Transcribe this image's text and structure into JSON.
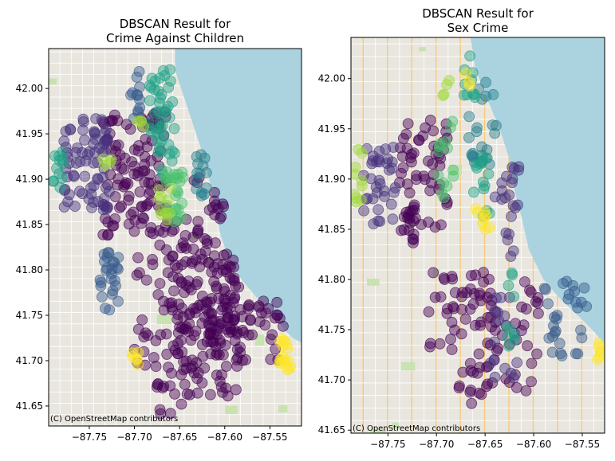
{
  "figure": {
    "colors": {
      "water": "#aad3df",
      "land": "#e9e6df",
      "park": "#c8e2b0",
      "road_major": "#f6c87a",
      "road_minor": "#ffffff",
      "viridis": [
        "#440154",
        "#46327e",
        "#365c8d",
        "#277f8e",
        "#1fa187",
        "#4ac16d",
        "#a0da39",
        "#fde725"
      ]
    }
  },
  "chart_data": [
    {
      "type": "scatter",
      "title_lines": [
        "DBSCAN Result for",
        "Crime Against Children"
      ],
      "attribution": "(C) OpenStreetMap contributors",
      "xlim": [
        -87.795,
        -87.515
      ],
      "ylim": [
        41.628,
        42.044
      ],
      "xticks": [
        -87.75,
        -87.7,
        -87.65,
        -87.6,
        -87.55
      ],
      "xtick_labels": [
        "−87.75",
        "−87.70",
        "−87.65",
        "−87.60",
        "−87.55"
      ],
      "yticks": [
        41.65,
        41.7,
        41.75,
        41.8,
        41.85,
        41.9,
        41.95,
        42.0
      ],
      "ytick_labels": [
        "41.65",
        "41.70",
        "41.75",
        "41.80",
        "41.85",
        "41.90",
        "41.95",
        "42.00"
      ],
      "colormap": "viridis",
      "basemap": "OpenStreetMap",
      "lake_outline": [
        [
          -87.655,
          42.044
        ],
        [
          -87.655,
          42.02
        ],
        [
          -87.645,
          41.99
        ],
        [
          -87.635,
          41.96
        ],
        [
          -87.625,
          41.93
        ],
        [
          -87.617,
          41.9
        ],
        [
          -87.612,
          41.87
        ],
        [
          -87.605,
          41.84
        ],
        [
          -87.595,
          41.81
        ],
        [
          -87.582,
          41.79
        ],
        [
          -87.565,
          41.77
        ],
        [
          -87.545,
          41.75
        ],
        [
          -87.535,
          41.735
        ],
        [
          -87.525,
          41.725
        ],
        [
          -87.515,
          41.72
        ],
        [
          -87.515,
          42.044
        ]
      ],
      "clusters": [
        {
          "label": 0,
          "color": 0.0,
          "regions": [
            [
              -87.735,
              -87.665,
              41.838,
              41.975
            ],
            [
              -87.7,
              -87.64,
              41.69,
              41.86
            ],
            [
              -87.655,
              -87.58,
              41.73,
              41.82
            ],
            [
              -87.64,
              -87.585,
              41.66,
              41.77
            ],
            [
              -87.62,
              -87.535,
              41.7,
              41.77
            ],
            [
              -87.635,
              -87.6,
              41.8,
              41.905
            ],
            [
              -87.675,
              -87.635,
              41.64,
              41.7
            ]
          ],
          "n_per_region": [
            110,
            70,
            75,
            55,
            55,
            30,
            18
          ]
        },
        {
          "label": 1,
          "color": 0.15,
          "regions": [
            [
              -87.778,
              -87.727,
              41.865,
              41.97
            ]
          ],
          "n_per_region": [
            70
          ]
        },
        {
          "label": 2,
          "color": 0.28,
          "regions": [
            [
              -87.738,
              -87.717,
              41.755,
              41.82
            ]
          ],
          "n_per_region": [
            26
          ]
        },
        {
          "label": 3,
          "color": 0.4,
          "regions": [
            [
              -87.632,
              -87.618,
              41.88,
              41.93
            ]
          ],
          "n_per_region": [
            14
          ]
        },
        {
          "label": 4,
          "color": 0.33,
          "regions": [
            [
              -87.707,
              -87.694,
              41.965,
              42.02
            ]
          ],
          "n_per_region": [
            12
          ]
        },
        {
          "label": 5,
          "color": 0.55,
          "regions": [
            [
              -87.685,
              -87.655,
              41.905,
              42.022
            ],
            [
              -87.79,
              -87.778,
              41.89,
              41.95
            ]
          ],
          "n_per_region": [
            45,
            12
          ]
        },
        {
          "label": 6,
          "color": 0.7,
          "regions": [
            [
              -87.667,
              -87.645,
              41.85,
              41.91
            ]
          ],
          "n_per_region": [
            25
          ]
        },
        {
          "label": 7,
          "color": 0.88,
          "regions": [
            [
              -87.697,
              -87.685,
              41.958,
              41.972
            ],
            [
              -87.673,
              -87.66,
              41.845,
              41.89
            ],
            [
              -87.735,
              -87.725,
              41.91,
              41.93
            ]
          ],
          "n_per_region": [
            4,
            10,
            4
          ]
        },
        {
          "label": 8,
          "color": 1.0,
          "regions": [
            [
              -87.54,
              -87.527,
              41.69,
              41.725
            ],
            [
              -87.703,
              -87.694,
              41.69,
              41.71
            ]
          ],
          "n_per_region": [
            16,
            6
          ]
        }
      ]
    },
    {
      "type": "scatter",
      "title_lines": [
        "DBSCAN Result for",
        "Sex Crime"
      ],
      "attribution": "(C) OpenStreetMap contributors",
      "xlim": [
        -87.788,
        -87.527
      ],
      "ylim": [
        41.647,
        42.041
      ],
      "xticks": [
        -87.75,
        -87.7,
        -87.65,
        -87.6,
        -87.55
      ],
      "xtick_labels": [
        "−87.75",
        "−87.70",
        "−87.65",
        "−87.60",
        "−87.55"
      ],
      "yticks": [
        41.65,
        41.7,
        41.75,
        41.8,
        41.85,
        41.9,
        41.95,
        42.0
      ],
      "ytick_labels": [
        "41.65",
        "41.70",
        "41.75",
        "41.80",
        "41.85",
        "41.90",
        "41.95",
        "42.00"
      ],
      "colormap": "viridis",
      "basemap": "OpenStreetMap",
      "lake_outline": [
        [
          -87.665,
          42.041
        ],
        [
          -87.66,
          42.01
        ],
        [
          -87.648,
          41.98
        ],
        [
          -87.635,
          41.95
        ],
        [
          -87.625,
          41.92
        ],
        [
          -87.62,
          41.89
        ],
        [
          -87.612,
          41.86
        ],
        [
          -87.605,
          41.83
        ],
        [
          -87.59,
          41.8
        ],
        [
          -87.572,
          41.78
        ],
        [
          -87.55,
          41.76
        ],
        [
          -87.535,
          41.745
        ],
        [
          -87.527,
          41.735
        ],
        [
          -87.527,
          42.041
        ]
      ],
      "clusters": [
        {
          "label": 0,
          "color": 0.0,
          "regions": [
            [
              -87.738,
              -87.688,
              41.835,
              41.96
            ],
            [
              -87.68,
              -87.64,
              41.66,
              41.81
            ],
            [
              -87.71,
              -87.68,
              41.73,
              41.81
            ],
            [
              -87.645,
              -87.595,
              41.68,
              41.8
            ]
          ],
          "n_per_region": [
            70,
            45,
            20,
            35
          ]
        },
        {
          "label": 1,
          "color": 0.12,
          "regions": [
            [
              -87.775,
              -87.74,
              41.855,
              41.935
            ],
            [
              -87.64,
              -87.615,
              41.82,
              41.92
            ],
            [
              -87.645,
              -87.615,
              41.7,
              41.79
            ]
          ],
          "n_per_region": [
            35,
            22,
            16
          ]
        },
        {
          "label": 2,
          "color": 0.32,
          "regions": [
            [
              -87.595,
              -87.545,
              41.72,
              41.8
            ]
          ],
          "n_per_region": [
            30
          ]
        },
        {
          "label": 3,
          "color": 0.45,
          "regions": [
            [
              -87.667,
              -87.638,
              41.91,
              42.0
            ]
          ],
          "n_per_region": [
            24
          ]
        },
        {
          "label": 4,
          "color": 0.55,
          "regions": [
            [
              -87.672,
              -87.66,
              41.98,
              42.025
            ],
            [
              -87.628,
              -87.618,
              41.72,
              41.82
            ]
          ],
          "n_per_region": [
            10,
            10
          ]
        },
        {
          "label": 5,
          "color": 0.62,
          "regions": [
            [
              -87.662,
              -87.645,
              41.86,
              41.925
            ]
          ],
          "n_per_region": [
            14
          ]
        },
        {
          "label": 6,
          "color": 0.75,
          "regions": [
            [
              -87.7,
              -87.682,
              41.87,
              41.96
            ]
          ],
          "n_per_region": [
            14
          ]
        },
        {
          "label": 7,
          "color": 0.85,
          "regions": [
            [
              -87.785,
              -87.775,
              41.87,
              41.93
            ],
            [
              -87.695,
              -87.685,
              41.98,
              42.0
            ]
          ],
          "n_per_region": [
            10,
            4
          ]
        },
        {
          "label": 8,
          "color": 1.0,
          "regions": [
            [
              -87.66,
              -87.645,
              41.845,
              41.88
            ],
            [
              -87.67,
              -87.665,
              41.99,
              42.01
            ],
            [
              -87.535,
              -87.528,
              41.72,
              41.745
            ]
          ],
          "n_per_region": [
            8,
            3,
            6
          ]
        }
      ]
    }
  ]
}
